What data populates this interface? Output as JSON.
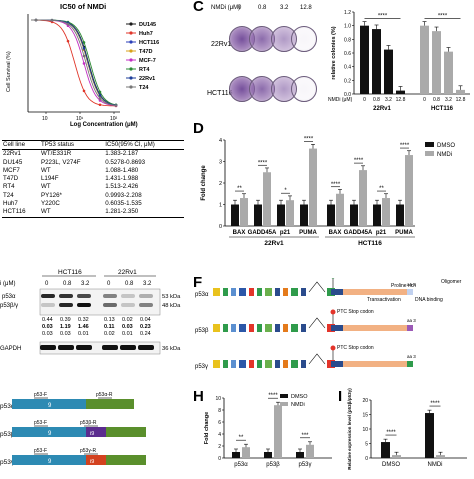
{
  "panelA": {
    "title": "IC50 of NMDi",
    "xlabel": "Log Concentration (μM)",
    "ylabel": "Cell Survival (%)",
    "legend": [
      {
        "name": "DU145",
        "color": "#1a1a1a"
      },
      {
        "name": "Huh7",
        "color": "#e0362a"
      },
      {
        "name": "HCT116",
        "color": "#2b3fb8"
      },
      {
        "name": "T47D",
        "color": "#d9a21c"
      },
      {
        "name": "MCF-7",
        "color": "#c22fc4"
      },
      {
        "name": "RT4",
        "color": "#2a8a34"
      },
      {
        "name": "22Rv1",
        "color": "#1d3e9a"
      },
      {
        "name": "T24",
        "color": "#777777"
      }
    ],
    "xticks": [
      "10",
      "10¹",
      "10²"
    ]
  },
  "table": {
    "headers": [
      "Cell line",
      "TP53 status",
      "IC50(95% CI, μM)"
    ],
    "rows": [
      [
        "22Rv1",
        "WT/E331R",
        "1.383-2.187"
      ],
      [
        "DU145",
        "P223L, V274F",
        "0.5278-0.8693"
      ],
      [
        "MCF7",
        "WT",
        "1.088-1.480"
      ],
      [
        "T47D",
        "L194F",
        "1.431-1.988"
      ],
      [
        "RT4",
        "WT",
        "1.513-2.426"
      ],
      [
        "T24",
        "PY126*",
        "0.9993-2.208"
      ],
      [
        "Huh7",
        "Y220C",
        "0.6035-1.535"
      ],
      [
        "HCT116",
        "WT",
        "1.281-2.350"
      ]
    ]
  },
  "panelB": {
    "groups": [
      "HCT116",
      "22Rv1"
    ],
    "conc_label": "i (μM)",
    "concs": [
      "0",
      "0.8",
      "3.2",
      "0",
      "0.8",
      "3.2"
    ],
    "bands": [
      {
        "label": "p53α",
        "kda": "53 kDa"
      },
      {
        "label": "p53β/γ",
        "kda": "48 kDa"
      },
      {
        "label": "GAPDH",
        "kda": "36 kDa"
      }
    ],
    "quant_row1": [
      "0.44",
      "0.39",
      "0.32",
      "0.13",
      "0.02",
      "0.04"
    ],
    "quant_row2": [
      "0.03",
      "1.19",
      "1.46",
      "0.11",
      "0.03",
      "0.23"
    ],
    "quant_row3": [
      "0.03",
      "0.03",
      "0.01",
      "0.02",
      "0.01",
      "0.24"
    ]
  },
  "panelC": {
    "conc_label": "NMDi (μM)",
    "concs": [
      "0",
      "0.8",
      "3.2",
      "12.8"
    ],
    "rows": [
      "22Rv1",
      "HCT116"
    ],
    "chart_data": {
      "type": "bar",
      "ylabel": "relative colonies (%)",
      "ylim": [
        0,
        1.2
      ],
      "yticks": [
        "0.0",
        "0.2",
        "0.4",
        "0.6",
        "0.8",
        "1.0",
        "1.2"
      ],
      "groups": [
        "22Rv1",
        "HCT116"
      ],
      "x_label": "NMDi (μM)",
      "categories": [
        "0",
        "0.8",
        "3.2",
        "12.8"
      ],
      "series": [
        {
          "name": "22Rv1",
          "values": [
            1.0,
            0.95,
            0.65,
            0.05
          ],
          "color": "#111111"
        },
        {
          "name": "HCT116",
          "values": [
            1.0,
            0.92,
            0.62,
            0.06
          ],
          "color": "#aaaaaa"
        }
      ],
      "sig": [
        "****",
        "****"
      ]
    }
  },
  "panelD": {
    "chart_data": {
      "type": "bar",
      "ylabel": "Fold change",
      "ylim": [
        0,
        4
      ],
      "yticks": [
        "0",
        "1",
        "2",
        "3",
        "4"
      ],
      "genes": [
        "BAX",
        "GADD45A",
        "p21",
        "PUMA",
        "BAX",
        "GADD45A",
        "p21",
        "PUMA"
      ],
      "cell_groups": [
        "22Rv1",
        "HCT116"
      ],
      "series": [
        {
          "name": "DMSO",
          "values": [
            1,
            1,
            1,
            1,
            1,
            1,
            1,
            1
          ],
          "color": "#111111"
        },
        {
          "name": "NMDi",
          "values": [
            1.3,
            2.5,
            1.2,
            3.6,
            1.5,
            2.6,
            1.3,
            3.3
          ],
          "color": "#aaaaaa"
        }
      ],
      "sig": [
        "**",
        "****",
        "*",
        "****",
        "****",
        "****",
        "**",
        "****"
      ]
    }
  },
  "panelF": {
    "isoforms": [
      "p53α",
      "p53β",
      "p53γ"
    ],
    "labels": {
      "stop": "Stop codon",
      "ptc": "PTC Stop codon",
      "proline": "Proline rich",
      "transactivation": "Transactivation",
      "dna": "DNA binding",
      "oligomer": "Oligomer",
      "aa": "aa 3"
    }
  },
  "panelG": {
    "isoforms": [
      "p53α",
      "p53β",
      "p53γ"
    ],
    "primerF": "p53-F",
    "primerRa": "p53α-R",
    "primerRb": "p53β-R",
    "primerRg": "p53γ-R",
    "exon9": "9",
    "exon9b": "i9"
  },
  "panelH": {
    "chart_data": {
      "type": "bar",
      "ylabel": "Fold change",
      "ylim": [
        0,
        10
      ],
      "yticks": [
        "0",
        "2",
        "4",
        "6",
        "8",
        "10"
      ],
      "categories": [
        "p53α",
        "p53β",
        "p53γ"
      ],
      "series": [
        {
          "name": "DMSO",
          "values": [
            1,
            1,
            1
          ],
          "color": "#111111"
        },
        {
          "name": "NMDi",
          "values": [
            1.8,
            8.8,
            2.2
          ],
          "color": "#aaaaaa"
        }
      ],
      "sig": [
        "**",
        "****",
        "***"
      ]
    }
  },
  "panelI": {
    "chart_data": {
      "type": "bar",
      "ylabel": "Relative expression level (p53β/p53γ)",
      "ylim": [
        0,
        20
      ],
      "yticks": [
        "0",
        "5",
        "10",
        "15",
        "20"
      ],
      "categories": [
        "DMSO",
        "NMDi"
      ],
      "series": [
        {
          "name": "p53β",
          "values": [
            5.5,
            15.5
          ],
          "color": "#111111"
        },
        {
          "name": "p53γ",
          "values": [
            1,
            1
          ],
          "color": "#aaaaaa"
        }
      ],
      "sig": [
        "****",
        "****"
      ]
    }
  },
  "letters": {
    "c": "C",
    "d": "D",
    "f": "F",
    "h": "H",
    "i": "I"
  }
}
